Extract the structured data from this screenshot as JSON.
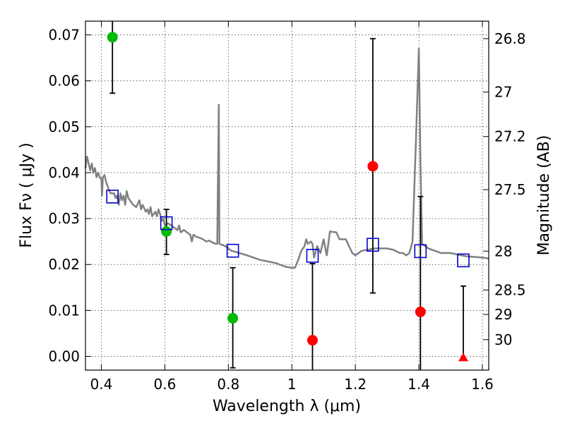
{
  "chart_data": {
    "type": "scatter",
    "xlabel": "Wavelength  λ (μm)",
    "ylabel": "Flux  Fν  ( μJy )",
    "y2label": "Magnitude (AB)",
    "xlim": [
      0.35,
      1.62
    ],
    "ylim": [
      -0.003,
      0.073
    ],
    "grid": true,
    "x_ticks": [
      {
        "value": 0.4,
        "label": "0.4"
      },
      {
        "value": 0.6,
        "label": "0.6"
      },
      {
        "value": 0.8,
        "label": "0.8"
      },
      {
        "value": 1.0,
        "label": "1"
      },
      {
        "value": 1.2,
        "label": "1.2"
      },
      {
        "value": 1.4,
        "label": "1.4"
      },
      {
        "value": 1.6,
        "label": "1.6"
      }
    ],
    "y_ticks": [
      {
        "value": 0.0,
        "label": "0.00"
      },
      {
        "value": 0.01,
        "label": "0.01"
      },
      {
        "value": 0.02,
        "label": "0.02"
      },
      {
        "value": 0.03,
        "label": "0.03"
      },
      {
        "value": 0.04,
        "label": "0.04"
      },
      {
        "value": 0.05,
        "label": "0.05"
      },
      {
        "value": 0.06,
        "label": "0.06"
      },
      {
        "value": 0.07,
        "label": "0.07"
      }
    ],
    "y2_ticks": [
      {
        "value": 26.8,
        "label": "26.8"
      },
      {
        "value": 27.0,
        "label": "27"
      },
      {
        "value": 27.2,
        "label": "27.2"
      },
      {
        "value": 27.5,
        "label": "27.5"
      },
      {
        "value": 28.0,
        "label": "28"
      },
      {
        "value": 28.5,
        "label": "28.5"
      },
      {
        "value": 29.0,
        "label": "29"
      },
      {
        "value": 30.0,
        "label": "30"
      }
    ],
    "model_spectrum": {
      "color": "#808080",
      "points": [
        [
          0.35,
          0.041
        ],
        [
          0.355,
          0.0435
        ],
        [
          0.36,
          0.042
        ],
        [
          0.365,
          0.0405
        ],
        [
          0.37,
          0.042
        ],
        [
          0.375,
          0.04
        ],
        [
          0.38,
          0.041
        ],
        [
          0.385,
          0.039
        ],
        [
          0.39,
          0.04
        ],
        [
          0.395,
          0.039
        ],
        [
          0.4,
          0.0385
        ],
        [
          0.402,
          0.035
        ],
        [
          0.405,
          0.039
        ],
        [
          0.41,
          0.0395
        ],
        [
          0.415,
          0.038
        ],
        [
          0.42,
          0.037
        ],
        [
          0.425,
          0.036
        ],
        [
          0.43,
          0.0355
        ],
        [
          0.44,
          0.0355
        ],
        [
          0.445,
          0.0345
        ],
        [
          0.45,
          0.035
        ],
        [
          0.455,
          0.033
        ],
        [
          0.46,
          0.0355
        ],
        [
          0.465,
          0.034
        ],
        [
          0.47,
          0.035
        ],
        [
          0.475,
          0.033
        ],
        [
          0.48,
          0.036
        ],
        [
          0.485,
          0.0345
        ],
        [
          0.49,
          0.034
        ],
        [
          0.5,
          0.033
        ],
        [
          0.51,
          0.0325
        ],
        [
          0.52,
          0.034
        ],
        [
          0.525,
          0.032
        ],
        [
          0.53,
          0.033
        ],
        [
          0.54,
          0.0315
        ],
        [
          0.545,
          0.032
        ],
        [
          0.55,
          0.031
        ],
        [
          0.555,
          0.0325
        ],
        [
          0.56,
          0.0305
        ],
        [
          0.57,
          0.0315
        ],
        [
          0.575,
          0.0305
        ],
        [
          0.58,
          0.032
        ],
        [
          0.585,
          0.031
        ],
        [
          0.59,
          0.0295
        ],
        [
          0.595,
          0.03
        ],
        [
          0.6,
          0.0285
        ],
        [
          0.61,
          0.029
        ],
        [
          0.62,
          0.0285
        ],
        [
          0.63,
          0.028
        ],
        [
          0.64,
          0.0275
        ],
        [
          0.645,
          0.0285
        ],
        [
          0.65,
          0.027
        ],
        [
          0.66,
          0.0275
        ],
        [
          0.67,
          0.027
        ],
        [
          0.68,
          0.0265
        ],
        [
          0.685,
          0.025
        ],
        [
          0.69,
          0.0265
        ],
        [
          0.7,
          0.026
        ],
        [
          0.71,
          0.0258
        ],
        [
          0.72,
          0.0255
        ],
        [
          0.73,
          0.025
        ],
        [
          0.74,
          0.0252
        ],
        [
          0.75,
          0.0248
        ],
        [
          0.76,
          0.0245
        ],
        [
          0.765,
          0.0245
        ],
        [
          0.77,
          0.0548
        ],
        [
          0.772,
          0.0245
        ],
        [
          0.78,
          0.0243
        ],
        [
          0.79,
          0.024
        ],
        [
          0.8,
          0.0235
        ],
        [
          0.81,
          0.023
        ],
        [
          0.82,
          0.0228
        ],
        [
          0.85,
          0.0222
        ],
        [
          0.88,
          0.0215
        ],
        [
          0.9,
          0.021
        ],
        [
          0.95,
          0.0203
        ],
        [
          0.98,
          0.0195
        ],
        [
          1.0,
          0.0193
        ],
        [
          1.01,
          0.0193
        ],
        [
          1.02,
          0.021
        ],
        [
          1.03,
          0.023
        ],
        [
          1.04,
          0.024
        ],
        [
          1.045,
          0.0255
        ],
        [
          1.05,
          0.0245
        ],
        [
          1.06,
          0.025
        ],
        [
          1.065,
          0.0245
        ],
        [
          1.07,
          0.0215
        ],
        [
          1.08,
          0.024
        ],
        [
          1.09,
          0.0225
        ],
        [
          1.1,
          0.0255
        ],
        [
          1.11,
          0.022
        ],
        [
          1.12,
          0.0272
        ],
        [
          1.14,
          0.027
        ],
        [
          1.15,
          0.0255
        ],
        [
          1.17,
          0.0255
        ],
        [
          1.19,
          0.0225
        ],
        [
          1.2,
          0.022
        ],
        [
          1.22,
          0.023
        ],
        [
          1.24,
          0.0232
        ],
        [
          1.26,
          0.0235
        ],
        [
          1.3,
          0.0235
        ],
        [
          1.32,
          0.0232
        ],
        [
          1.34,
          0.0225
        ],
        [
          1.35,
          0.0225
        ],
        [
          1.36,
          0.022
        ],
        [
          1.37,
          0.0225
        ],
        [
          1.38,
          0.025
        ],
        [
          1.39,
          0.0455
        ],
        [
          1.4,
          0.067
        ],
        [
          1.405,
          0.0425
        ],
        [
          1.41,
          0.0245
        ],
        [
          1.43,
          0.0235
        ],
        [
          1.45,
          0.023
        ],
        [
          1.47,
          0.0225
        ],
        [
          1.5,
          0.0225
        ],
        [
          1.52,
          0.0222
        ],
        [
          1.55,
          0.0218
        ],
        [
          1.6,
          0.0215
        ],
        [
          1.62,
          0.0213
        ]
      ]
    },
    "observed_points": [
      {
        "x": 0.435,
        "y": 0.0695,
        "ylo": 0.0573,
        "yhi": 0.0735,
        "color": "#00bb00",
        "marker": "circle"
      },
      {
        "x": 0.605,
        "y": 0.0272,
        "ylo": 0.0222,
        "yhi": 0.032,
        "color": "#00bb00",
        "marker": "circle"
      },
      {
        "x": 0.814,
        "y": 0.0083,
        "ylo": -0.0025,
        "yhi": 0.0193,
        "color": "#00bb00",
        "marker": "circle"
      },
      {
        "x": 1.065,
        "y": 0.0035,
        "ylo": -0.0035,
        "yhi": 0.0202,
        "color": "#ff0000",
        "marker": "circle"
      },
      {
        "x": 1.255,
        "y": 0.0414,
        "ylo": 0.0138,
        "yhi": 0.0692,
        "color": "#ff0000",
        "marker": "circle"
      },
      {
        "x": 1.405,
        "y": 0.0097,
        "ylo": -0.0035,
        "yhi": 0.0348,
        "color": "#ff0000",
        "marker": "circle"
      },
      {
        "x": 1.54,
        "y": -0.0003,
        "ylo": -0.0003,
        "yhi": 0.0153,
        "color": "#ff0000",
        "marker": "triangle"
      }
    ],
    "model_band_points": [
      {
        "x": 0.435,
        "y": 0.0348
      },
      {
        "x": 0.605,
        "y": 0.029
      },
      {
        "x": 0.814,
        "y": 0.023
      },
      {
        "x": 1.065,
        "y": 0.0219
      },
      {
        "x": 1.255,
        "y": 0.0243
      },
      {
        "x": 1.405,
        "y": 0.0229
      },
      {
        "x": 1.54,
        "y": 0.0209
      }
    ],
    "model_band_color": "#0000cc"
  }
}
